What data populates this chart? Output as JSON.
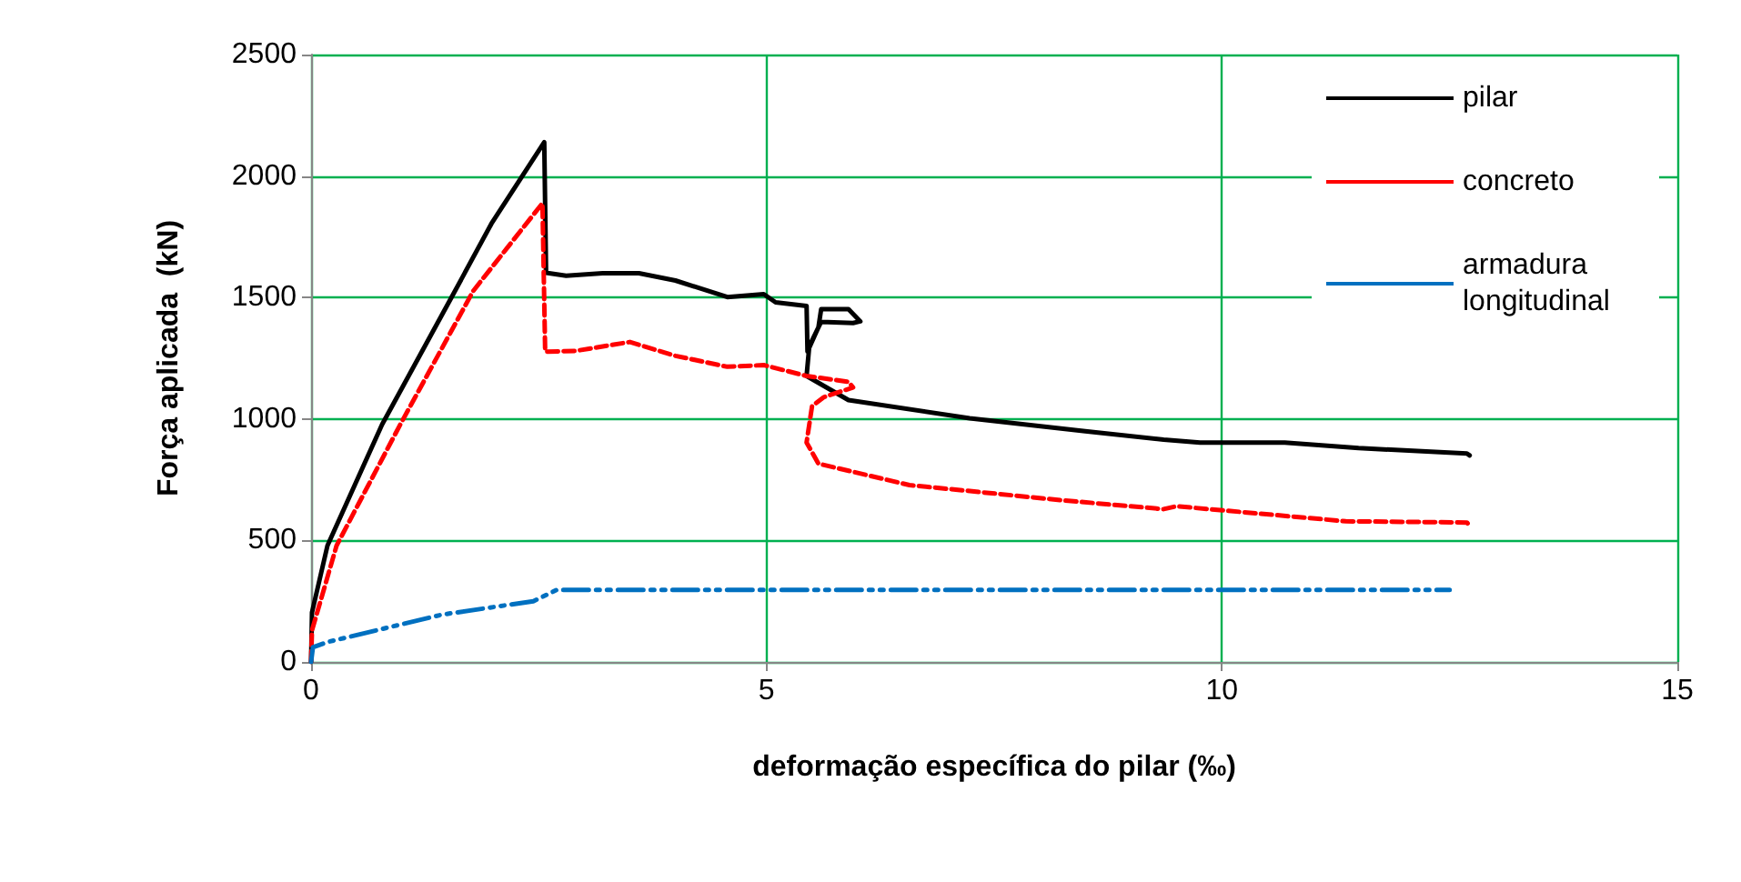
{
  "chart_data": {
    "type": "line",
    "xlabel": "deformação específica do pilar (‰)",
    "ylabel": "Força aplicada  (kN)",
    "xlim": [
      0,
      15
    ],
    "xticks": [
      0,
      5,
      10,
      15
    ],
    "ylim": [
      0,
      2500
    ],
    "yticks": [
      0,
      500,
      1000,
      1500,
      2000,
      2500
    ],
    "grid": true,
    "legend": "top right",
    "marker": "none",
    "series": [
      {
        "name": "pilar",
        "color": "#000000",
        "line_style": "solid",
        "x": [
          0,
          0.01,
          0.18,
          0.78,
          1.58,
          1.98,
          2.56,
          2.58,
          2.8,
          3.2,
          3.6,
          4.0,
          4.57,
          4.97,
          5.1,
          5.44,
          5.45,
          5.57,
          5.6,
          5.9,
          6.03,
          5.95,
          5.6,
          5.47,
          5.44,
          5.9,
          7.23,
          8.5,
          9.36,
          9.76,
          10.69,
          11.5,
          12.69,
          12.72
        ],
        "values": [
          0,
          204,
          479,
          978,
          1527,
          1804,
          2139,
          1602,
          1590,
          1600,
          1600,
          1570,
          1502,
          1514,
          1480,
          1465,
          1277,
          1377,
          1452,
          1452,
          1402,
          1395,
          1400,
          1300,
          1177,
          1078,
          1003,
          950,
          915,
          903,
          903,
          880,
          858,
          850
        ]
      },
      {
        "name": "concreto",
        "color": "#ff0000",
        "line_style": "dashed",
        "x": [
          0,
          0.01,
          0.28,
          0.98,
          1.78,
          2.54,
          2.57,
          2.9,
          3.5,
          4.0,
          4.57,
          4.97,
          5.44,
          5.9,
          5.95,
          5.63,
          5.5,
          5.44,
          5.57,
          6.57,
          8.23,
          9.36,
          9.5,
          11.36,
          12.69,
          12.72
        ],
        "values": [
          0,
          130,
          479,
          978,
          1527,
          1888,
          1277,
          1280,
          1317,
          1260,
          1215,
          1222,
          1177,
          1153,
          1130,
          1090,
          1053,
          903,
          816,
          728,
          666,
          629,
          641,
          579,
          574,
          560
        ]
      },
      {
        "name": "armadura longitudinal",
        "color": "#0070c0",
        "line_style": "dotted",
        "x": [
          0,
          0.02,
          0.18,
          1.44,
          2.44,
          2.7,
          5,
          8,
          10,
          12.5
        ],
        "values": [
          0,
          60,
          82,
          195,
          250,
          297,
          297,
          297,
          297,
          297
        ]
      }
    ]
  }
}
